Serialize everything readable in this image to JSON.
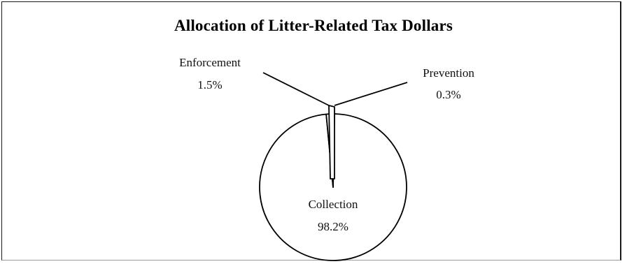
{
  "chart_data": {
    "type": "pie",
    "title": "Allocation of Litter-Related Tax Dollars",
    "categories": [
      "Collection",
      "Enforcement",
      "Prevention"
    ],
    "values": [
      98.2,
      1.5,
      0.3
    ],
    "value_labels": [
      "98.2%",
      "1.5%",
      "0.3%"
    ],
    "colors": [
      "#ffffff",
      "#ffffff",
      "#ffffff"
    ],
    "stroke_color": "#000000",
    "legend": "none"
  }
}
